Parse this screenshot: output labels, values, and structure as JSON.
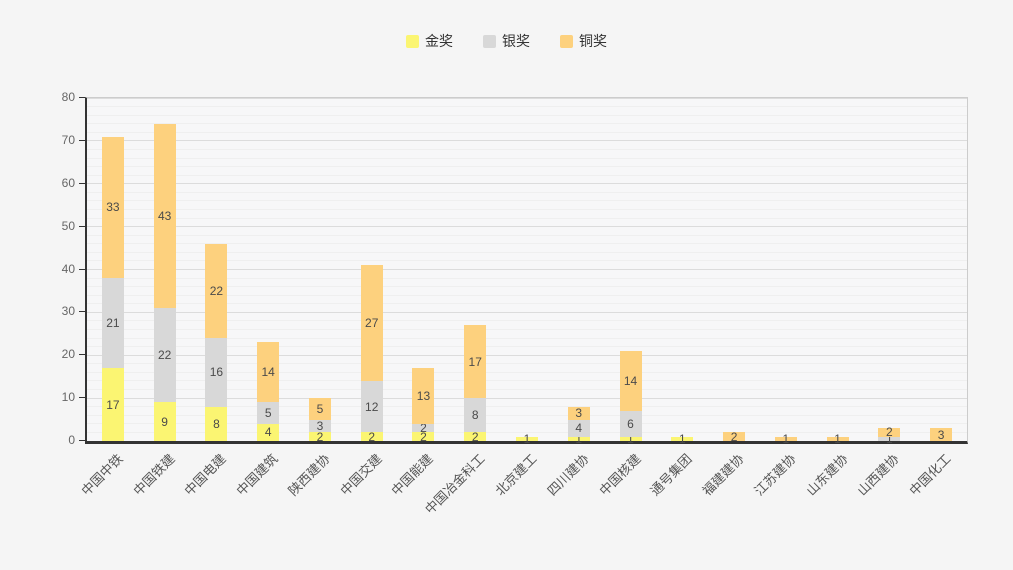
{
  "chart_data": {
    "type": "bar",
    "stacked": true,
    "title": "",
    "xlabel": "",
    "ylabel": "",
    "legend_position": "top",
    "grid": true,
    "ylim": [
      0,
      80
    ],
    "y_ticks": [
      0,
      10,
      20,
      30,
      40,
      50,
      60,
      70,
      80
    ],
    "minor_grid_step": 2,
    "value_labels": true,
    "categories": [
      "中国中铁",
      "中国铁建",
      "中国电建",
      "中国建筑",
      "陕西建协",
      "中国交建",
      "中国能建",
      "中国冶金科工",
      "北京建工",
      "四川建协",
      "中国核建",
      "通号集团",
      "福建建协",
      "江苏建协",
      "山东建协",
      "山西建协",
      "中国化工"
    ],
    "series": [
      {
        "name": "金奖",
        "key": "gold",
        "color": "#FBF572",
        "values": [
          17,
          9,
          8,
          4,
          2,
          2,
          2,
          2,
          1,
          1,
          1,
          1,
          0,
          0,
          0,
          0,
          0
        ]
      },
      {
        "name": "银奖",
        "key": "silver",
        "color": "#D8D8D8",
        "values": [
          21,
          22,
          16,
          5,
          3,
          12,
          2,
          8,
          0,
          4,
          6,
          0,
          0,
          0,
          0,
          1,
          0
        ]
      },
      {
        "name": "铜奖",
        "key": "bronze",
        "color": "#FDD17E",
        "values": [
          33,
          43,
          22,
          14,
          5,
          27,
          13,
          17,
          0,
          3,
          14,
          0,
          2,
          1,
          1,
          2,
          3
        ]
      }
    ],
    "totals": [
      71,
      74,
      46,
      23,
      10,
      41,
      17,
      27,
      1,
      8,
      21,
      1,
      2,
      1,
      1,
      3,
      3
    ]
  }
}
